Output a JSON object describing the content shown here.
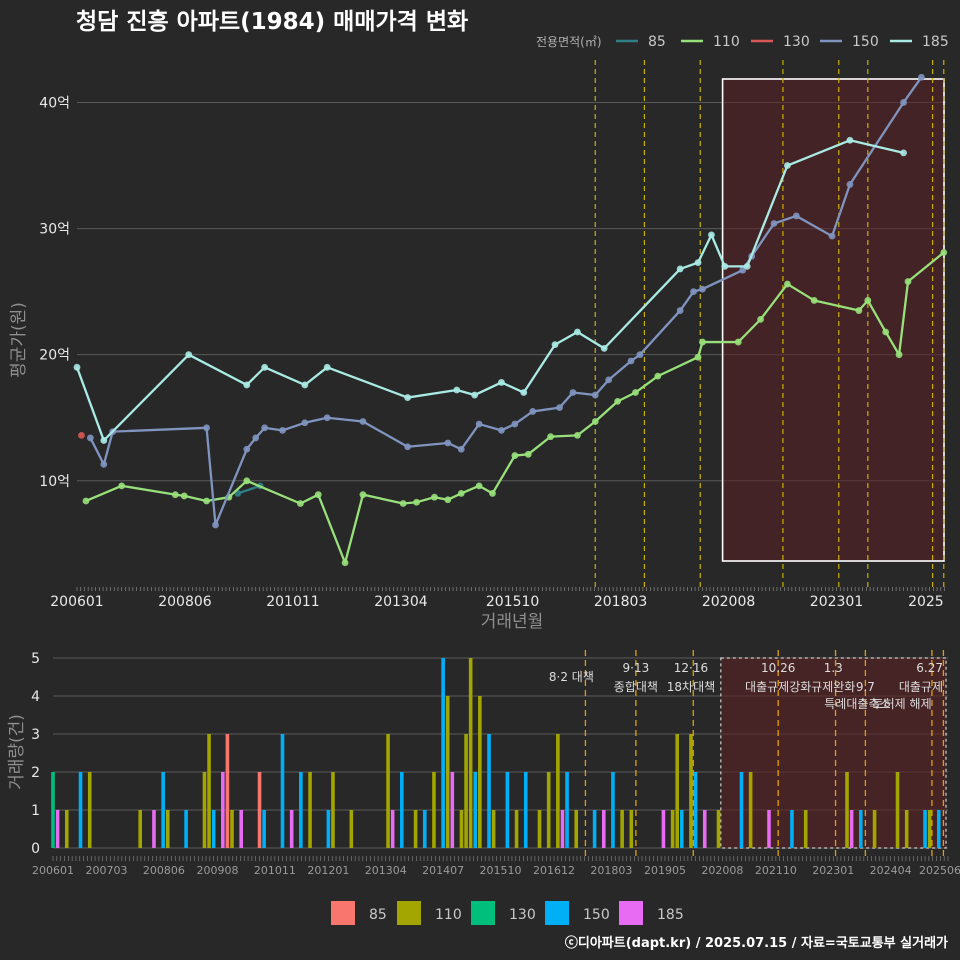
{
  "title": "청담 진흥 아파트(1984) 매매가격 변화",
  "legend_title": "전용면적(㎡)",
  "credit": "ⓒ디아파트(dapt.kr) / 2025.07.15 / 자료=국토교통부 실거래가",
  "colors": {
    "85": "#2f7f86",
    "110": "#98e07a",
    "130": "#d95757",
    "150": "#7f94bf",
    "185": "#a9eae4"
  },
  "bar_colors": {
    "85": "#f8766d",
    "110": "#a3a500",
    "130": "#00bf7d",
    "150": "#00b0f6",
    "185": "#e76bf3"
  },
  "chart_data": [
    {
      "type": "line",
      "title": "청담 진흥 아파트(1984) 매매가격 변화",
      "xlabel": "거래년월",
      "ylabel": "평균가(원)",
      "x_ticks": [
        "200601",
        "200806",
        "201011",
        "201304",
        "201510",
        "201803",
        "202008",
        "202301",
        "2025"
      ],
      "y_ticks": [
        "10억",
        "20억",
        "30억",
        "40억"
      ],
      "ylim": [
        1.5,
        44
      ],
      "series": [
        {
          "name": "85",
          "values": [
            {
              "x": "2009.6",
              "y": 9.0
            },
            {
              "x": "2010.1",
              "y": 9.6
            }
          ]
        },
        {
          "name": "110",
          "values": [
            {
              "x": "2006.2",
              "y": 8.4
            },
            {
              "x": "2007.0",
              "y": 9.6
            },
            {
              "x": "2008.2",
              "y": 8.9
            },
            {
              "x": "2008.4",
              "y": 8.8
            },
            {
              "x": "2008.9",
              "y": 8.4
            },
            {
              "x": "2009.4",
              "y": 8.7
            },
            {
              "x": "2009.8",
              "y": 10.0
            },
            {
              "x": "2011.0",
              "y": 8.2
            },
            {
              "x": "2011.4",
              "y": 8.9
            },
            {
              "x": "2012.0",
              "y": 3.5
            },
            {
              "x": "2012.4",
              "y": 8.9
            },
            {
              "x": "2013.3",
              "y": 8.2
            },
            {
              "x": "2013.6",
              "y": 8.3
            },
            {
              "x": "2014.0",
              "y": 8.7
            },
            {
              "x": "2014.3",
              "y": 8.5
            },
            {
              "x": "2014.6",
              "y": 9.0
            },
            {
              "x": "2015.0",
              "y": 9.6
            },
            {
              "x": "2015.3",
              "y": 9.0
            },
            {
              "x": "2015.8",
              "y": 12.0
            },
            {
              "x": "2016.1",
              "y": 12.1
            },
            {
              "x": "2016.6",
              "y": 13.5
            },
            {
              "x": "2017.2",
              "y": 13.6
            },
            {
              "x": "2017.6",
              "y": 14.7
            },
            {
              "x": "2018.1",
              "y": 16.3
            },
            {
              "x": "2018.5",
              "y": 17.0
            },
            {
              "x": "2019.0",
              "y": 18.3
            },
            {
              "x": "2019.9",
              "y": 19.8
            },
            {
              "x": "2020.0",
              "y": 21.0
            },
            {
              "x": "2020.8",
              "y": 21.0
            },
            {
              "x": "2021.3",
              "y": 22.8
            },
            {
              "x": "2021.9",
              "y": 25.6
            },
            {
              "x": "2022.5",
              "y": 24.3
            },
            {
              "x": "2023.5",
              "y": 23.5
            },
            {
              "x": "2023.7",
              "y": 24.3
            },
            {
              "x": "2024.1",
              "y": 21.8
            },
            {
              "x": "2024.4",
              "y": 20.0
            },
            {
              "x": "2024.6",
              "y": 25.8
            },
            {
              "x": "2025.4",
              "y": 28.1
            }
          ]
        },
        {
          "name": "130",
          "values": [
            {
              "x": "2006.1",
              "y": 13.6
            }
          ]
        },
        {
          "name": "150",
          "values": [
            {
              "x": "2006.3",
              "y": 13.4
            },
            {
              "x": "2006.6",
              "y": 11.3
            },
            {
              "x": "2006.8",
              "y": 13.9
            },
            {
              "x": "2008.9",
              "y": 14.2
            },
            {
              "x": "2009.1",
              "y": 6.5
            },
            {
              "x": "2009.8",
              "y": 12.5
            },
            {
              "x": "2010.0",
              "y": 13.4
            },
            {
              "x": "2010.2",
              "y": 14.2
            },
            {
              "x": "2010.6",
              "y": 14.0
            },
            {
              "x": "2011.1",
              "y": 14.6
            },
            {
              "x": "2011.6",
              "y": 15.0
            },
            {
              "x": "2012.4",
              "y": 14.7
            },
            {
              "x": "2013.4",
              "y": 12.7
            },
            {
              "x": "2014.3",
              "y": 13.0
            },
            {
              "x": "2014.6",
              "y": 12.5
            },
            {
              "x": "2015.0",
              "y": 14.5
            },
            {
              "x": "2015.5",
              "y": 14.0
            },
            {
              "x": "2015.8",
              "y": 14.5
            },
            {
              "x": "2016.2",
              "y": 15.5
            },
            {
              "x": "2016.8",
              "y": 15.8
            },
            {
              "x": "2017.1",
              "y": 17.0
            },
            {
              "x": "2017.6",
              "y": 16.8
            },
            {
              "x": "2017.9",
              "y": 18.0
            },
            {
              "x": "2018.4",
              "y": 19.5
            },
            {
              "x": "2018.6",
              "y": 20.0
            },
            {
              "x": "2019.5",
              "y": 23.5
            },
            {
              "x": "2019.8",
              "y": 25.0
            },
            {
              "x": "2020.0",
              "y": 25.2
            },
            {
              "x": "2020.9",
              "y": 26.7
            },
            {
              "x": "2021.1",
              "y": 27.8
            },
            {
              "x": "2021.6",
              "y": 30.4
            },
            {
              "x": "2022.1",
              "y": 31.0
            },
            {
              "x": "2022.9",
              "y": 29.4
            },
            {
              "x": "2023.3",
              "y": 33.5
            },
            {
              "x": "2024.5",
              "y": 40.0
            },
            {
              "x": "2024.9",
              "y": 42.0
            }
          ]
        },
        {
          "name": "185",
          "values": [
            {
              "x": "2006.0",
              "y": 19.0
            },
            {
              "x": "2006.6",
              "y": 13.2
            },
            {
              "x": "2008.5",
              "y": 20.0
            },
            {
              "x": "2009.8",
              "y": 17.6
            },
            {
              "x": "2010.2",
              "y": 19.0
            },
            {
              "x": "2011.1",
              "y": 17.6
            },
            {
              "x": "2011.6",
              "y": 19.0
            },
            {
              "x": "2013.4",
              "y": 16.6
            },
            {
              "x": "2014.5",
              "y": 17.2
            },
            {
              "x": "2014.9",
              "y": 16.8
            },
            {
              "x": "2015.5",
              "y": 17.8
            },
            {
              "x": "2016.0",
              "y": 17.0
            },
            {
              "x": "2016.7",
              "y": 20.8
            },
            {
              "x": "2017.2",
              "y": 21.8
            },
            {
              "x": "2017.8",
              "y": 20.5
            },
            {
              "x": "2019.5",
              "y": 26.8
            },
            {
              "x": "2019.9",
              "y": 27.3
            },
            {
              "x": "2020.2",
              "y": 29.5
            },
            {
              "x": "2020.5",
              "y": 27.0
            },
            {
              "x": "2021.0",
              "y": 27.0
            },
            {
              "x": "2021.9",
              "y": 35.0
            },
            {
              "x": "2023.3",
              "y": 37.0
            },
            {
              "x": "2024.5",
              "y": 36.0
            }
          ]
        }
      ]
    },
    {
      "type": "bar",
      "xlabel": "",
      "ylabel": "거래량(건)",
      "x_ticks": [
        "200601",
        "200703",
        "200806",
        "200908",
        "201011",
        "201201",
        "201304",
        "201407",
        "201510",
        "201612",
        "201803",
        "201905",
        "202008",
        "202110",
        "202301",
        "202404",
        "202506"
      ],
      "y_ticks": [
        "0",
        "1",
        "2",
        "3",
        "4",
        "5"
      ],
      "ylim": [
        0,
        5
      ],
      "categories": [
        "85",
        "110",
        "130",
        "150",
        "185"
      ],
      "annotations": [
        {
          "date": "2017.6",
          "text": "8·2 대책"
        },
        {
          "date": "2018.7",
          "text": "9·13"
        },
        {
          "date": "2018.7",
          "text": "종합대책"
        },
        {
          "date": "2019.9",
          "text": "12·16"
        },
        {
          "date": "2019.9",
          "text": "18차대책"
        },
        {
          "date": "2021.8",
          "text": "10.26"
        },
        {
          "date": "2021.8",
          "text": "대출규제강화"
        },
        {
          "date": "2023.0",
          "text": "1.3"
        },
        {
          "date": "2023.0",
          "text": "규제완화"
        },
        {
          "date": "2023.7",
          "text": "9.7"
        },
        {
          "date": "2023.7",
          "text": "특례대출축소"
        },
        {
          "date": "2024.5",
          "text": "토허제 해제"
        },
        {
          "date": "2025.5",
          "text": "6.27"
        },
        {
          "date": "2025.5",
          "text": "대출규제"
        }
      ],
      "bars": [
        {
          "x": "2006.0",
          "cat": "130",
          "y": 2
        },
        {
          "x": "2006.1",
          "cat": "185",
          "y": 1
        },
        {
          "x": "2006.3",
          "cat": "110",
          "y": 1
        },
        {
          "x": "2006.6",
          "cat": "150",
          "y": 2
        },
        {
          "x": "2006.8",
          "cat": "110",
          "y": 2
        },
        {
          "x": "2007.9",
          "cat": "110",
          "y": 1
        },
        {
          "x": "2008.2",
          "cat": "185",
          "y": 1
        },
        {
          "x": "2008.4",
          "cat": "150",
          "y": 2
        },
        {
          "x": "2008.5",
          "cat": "110",
          "y": 1
        },
        {
          "x": "2008.9",
          "cat": "150",
          "y": 1
        },
        {
          "x": "2009.3",
          "cat": "110",
          "y": 2
        },
        {
          "x": "2009.4",
          "cat": "110",
          "y": 3
        },
        {
          "x": "2009.5",
          "cat": "150",
          "y": 1
        },
        {
          "x": "2009.7",
          "cat": "185",
          "y": 2
        },
        {
          "x": "2009.8",
          "cat": "85",
          "y": 3
        },
        {
          "x": "2009.9",
          "cat": "110",
          "y": 1
        },
        {
          "x": "2010.1",
          "cat": "185",
          "y": 1
        },
        {
          "x": "2010.5",
          "cat": "85",
          "y": 2
        },
        {
          "x": "2010.6",
          "cat": "150",
          "y": 1
        },
        {
          "x": "2011.0",
          "cat": "150",
          "y": 3
        },
        {
          "x": "2011.2",
          "cat": "185",
          "y": 1
        },
        {
          "x": "2011.4",
          "cat": "150",
          "y": 2
        },
        {
          "x": "2011.6",
          "cat": "110",
          "y": 2
        },
        {
          "x": "2012.0",
          "cat": "150",
          "y": 1
        },
        {
          "x": "2012.1",
          "cat": "110",
          "y": 2
        },
        {
          "x": "2012.5",
          "cat": "110",
          "y": 1
        },
        {
          "x": "2013.3",
          "cat": "110",
          "y": 3
        },
        {
          "x": "2013.4",
          "cat": "185",
          "y": 1
        },
        {
          "x": "2013.6",
          "cat": "150",
          "y": 2
        },
        {
          "x": "2013.9",
          "cat": "110",
          "y": 1
        },
        {
          "x": "2014.1",
          "cat": "150",
          "y": 1
        },
        {
          "x": "2014.3",
          "cat": "110",
          "y": 2
        },
        {
          "x": "2014.5",
          "cat": "150",
          "y": 5
        },
        {
          "x": "2014.6",
          "cat": "110",
          "y": 4
        },
        {
          "x": "2014.7",
          "cat": "185",
          "y": 2
        },
        {
          "x": "2014.9",
          "cat": "110",
          "y": 1
        },
        {
          "x": "2015.0",
          "cat": "110",
          "y": 3
        },
        {
          "x": "2015.1",
          "cat": "110",
          "y": 5
        },
        {
          "x": "2015.2",
          "cat": "150",
          "y": 2
        },
        {
          "x": "2015.3",
          "cat": "110",
          "y": 4
        },
        {
          "x": "2015.5",
          "cat": "150",
          "y": 3
        },
        {
          "x": "2015.6",
          "cat": "110",
          "y": 1
        },
        {
          "x": "2015.9",
          "cat": "150",
          "y": 2
        },
        {
          "x": "2016.1",
          "cat": "110",
          "y": 1
        },
        {
          "x": "2016.3",
          "cat": "150",
          "y": 2
        },
        {
          "x": "2016.6",
          "cat": "110",
          "y": 1
        },
        {
          "x": "2016.8",
          "cat": "110",
          "y": 2
        },
        {
          "x": "2017.0",
          "cat": "110",
          "y": 3
        },
        {
          "x": "2017.1",
          "cat": "185",
          "y": 1
        },
        {
          "x": "2017.2",
          "cat": "150",
          "y": 2
        },
        {
          "x": "2017.4",
          "cat": "110",
          "y": 1
        },
        {
          "x": "2017.8",
          "cat": "150",
          "y": 1
        },
        {
          "x": "2018.0",
          "cat": "185",
          "y": 1
        },
        {
          "x": "2018.2",
          "cat": "150",
          "y": 2
        },
        {
          "x": "2018.4",
          "cat": "110",
          "y": 1
        },
        {
          "x": "2018.6",
          "cat": "110",
          "y": 1
        },
        {
          "x": "2019.3",
          "cat": "185",
          "y": 1
        },
        {
          "x": "2019.5",
          "cat": "110",
          "y": 1
        },
        {
          "x": "2019.6",
          "cat": "110",
          "y": 3
        },
        {
          "x": "2019.7",
          "cat": "150",
          "y": 1
        },
        {
          "x": "2019.9",
          "cat": "110",
          "y": 3
        },
        {
          "x": "2020.0",
          "cat": "150",
          "y": 2
        },
        {
          "x": "2020.2",
          "cat": "185",
          "y": 1
        },
        {
          "x": "2020.5",
          "cat": "110",
          "y": 1
        },
        {
          "x": "2021.0",
          "cat": "150",
          "y": 2
        },
        {
          "x": "2021.2",
          "cat": "110",
          "y": 2
        },
        {
          "x": "2021.6",
          "cat": "185",
          "y": 1
        },
        {
          "x": "2022.1",
          "cat": "150",
          "y": 1
        },
        {
          "x": "2022.4",
          "cat": "110",
          "y": 1
        },
        {
          "x": "2023.3",
          "cat": "110",
          "y": 2
        },
        {
          "x": "2023.4",
          "cat": "185",
          "y": 1
        },
        {
          "x": "2023.6",
          "cat": "150",
          "y": 1
        },
        {
          "x": "2023.9",
          "cat": "110",
          "y": 1
        },
        {
          "x": "2024.4",
          "cat": "110",
          "y": 2
        },
        {
          "x": "2024.6",
          "cat": "110",
          "y": 1
        },
        {
          "x": "2025.0",
          "cat": "150",
          "y": 1
        },
        {
          "x": "2025.1",
          "cat": "110",
          "y": 1
        },
        {
          "x": "2025.3",
          "cat": "150",
          "y": 1
        }
      ]
    }
  ]
}
